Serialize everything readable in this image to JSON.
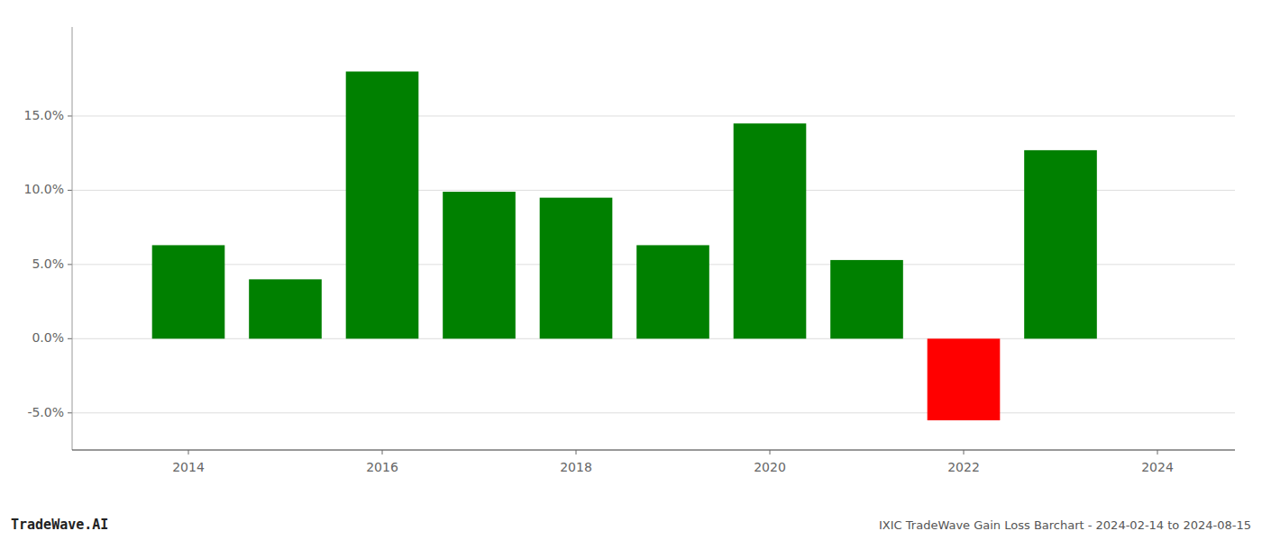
{
  "chart_data": {
    "type": "bar",
    "x": [
      2014,
      2015,
      2016,
      2017,
      2018,
      2019,
      2020,
      2021,
      2022,
      2023
    ],
    "values": [
      0.063,
      0.04,
      0.18,
      0.099,
      0.095,
      0.063,
      0.145,
      0.053,
      -0.055,
      0.127
    ],
    "colors": [
      "#008000",
      "#008000",
      "#008000",
      "#008000",
      "#008000",
      "#008000",
      "#008000",
      "#008000",
      "#ff0000",
      "#008000"
    ],
    "xlim": [
      2012.8,
      2024.8
    ],
    "xticks": [
      2014,
      2016,
      2018,
      2020,
      2022,
      2024
    ],
    "ylim": [
      -0.075,
      0.21
    ],
    "yticks": [
      {
        "value": -0.05,
        "label": "-5.0%"
      },
      {
        "value": 0.0,
        "label": "0.0%"
      },
      {
        "value": 0.05,
        "label": "5.0%"
      },
      {
        "value": 0.1,
        "label": "10.0%"
      },
      {
        "value": 0.15,
        "label": "15.0%"
      }
    ],
    "grid": true,
    "annotations": [
      "TradeWave.AI",
      "IXIC TradeWave Gain Loss Barchart - 2024-02-14 to 2024-08-15"
    ]
  }
}
